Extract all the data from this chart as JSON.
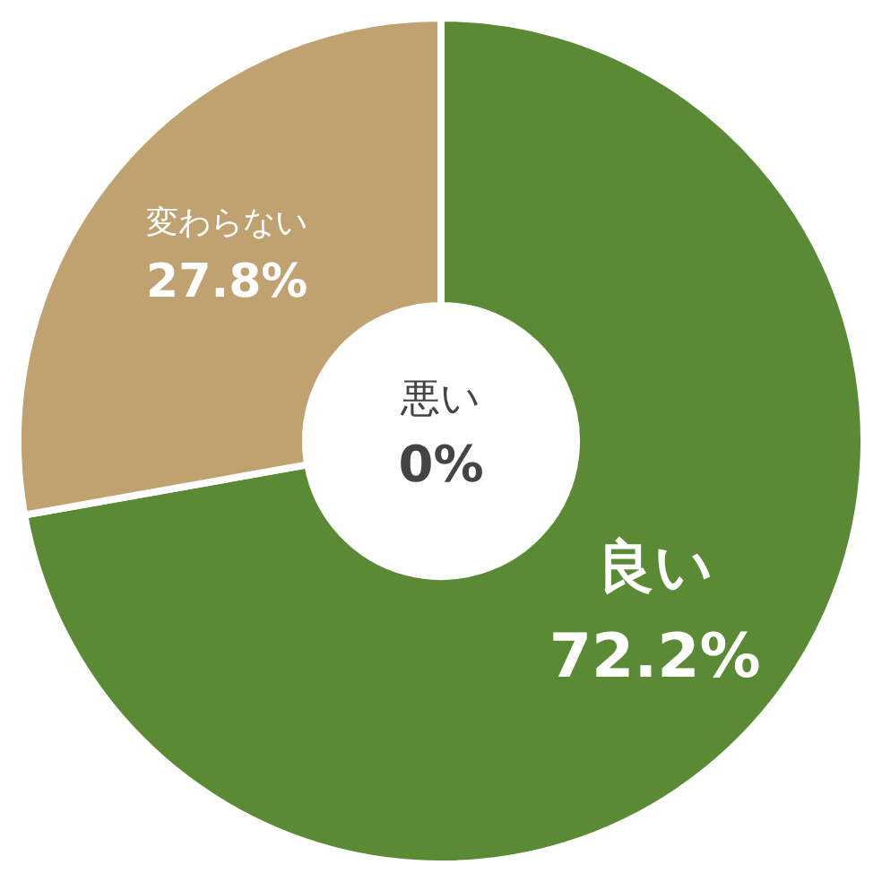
{
  "chart_data": {
    "type": "donut",
    "categories": [
      "良い",
      "変わらない",
      "悪い"
    ],
    "values": [
      72.2,
      27.8,
      0
    ],
    "colors": [
      "#5b8a35",
      "#c0a170",
      "#d9d9d9"
    ],
    "value_labels": [
      "72.2%",
      "27.8%",
      "0%"
    ],
    "legend": false
  }
}
